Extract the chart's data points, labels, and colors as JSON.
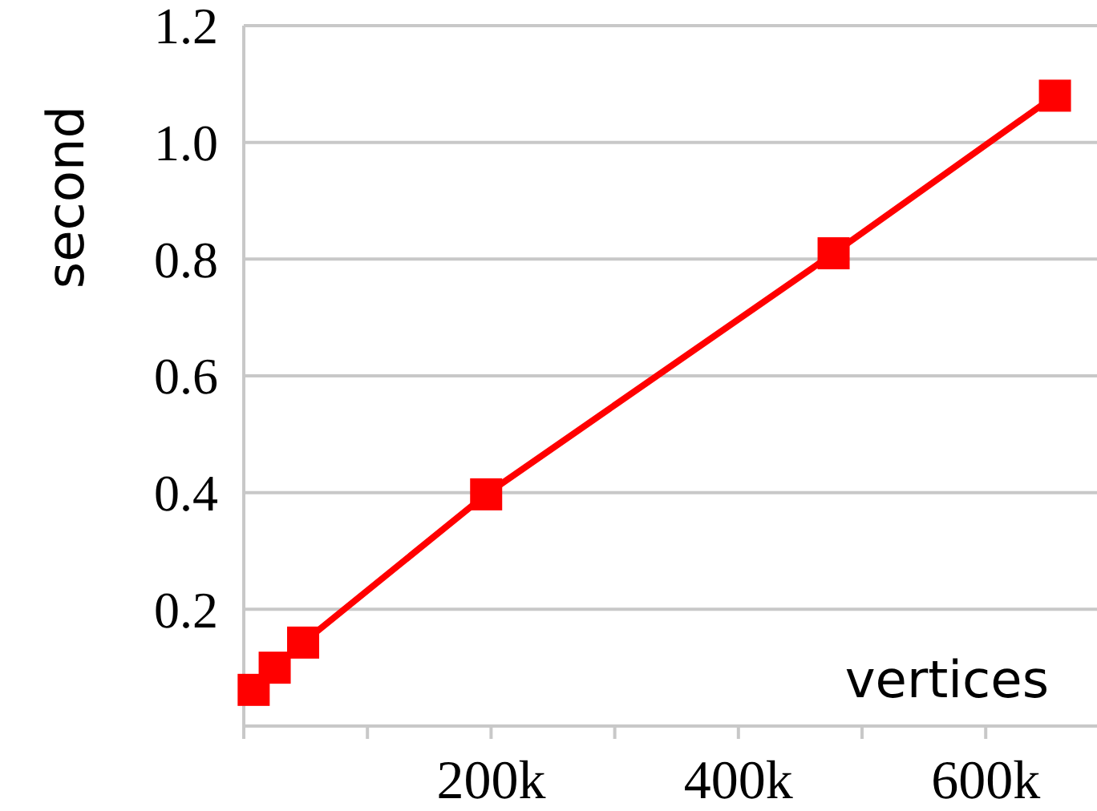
{
  "chart_data": {
    "type": "line",
    "xlabel": "vertices",
    "ylabel": "second",
    "x": [
      8000,
      25000,
      48000,
      196000,
      477000,
      656000
    ],
    "series": [
      {
        "color": "#ff0000",
        "values": [
          0.062,
          0.1,
          0.143,
          0.397,
          0.81,
          1.08
        ]
      }
    ],
    "xlim": [
      0,
      690000
    ],
    "ylim": [
      0,
      1.2
    ],
    "xticks": [
      {
        "value": 0,
        "label": null
      },
      {
        "value": 100000,
        "label": null
      },
      {
        "value": 200000,
        "label": "200k"
      },
      {
        "value": 300000,
        "label": null
      },
      {
        "value": 400000,
        "label": "400k"
      },
      {
        "value": 500000,
        "label": null
      },
      {
        "value": 600000,
        "label": "600k"
      }
    ],
    "yticks": [
      0.2,
      0.4,
      0.6,
      0.8,
      {
        "value": 1,
        "label": "1.0"
      },
      1.2
    ],
    "grid": "y",
    "marker": "square",
    "line_style": "solid"
  }
}
